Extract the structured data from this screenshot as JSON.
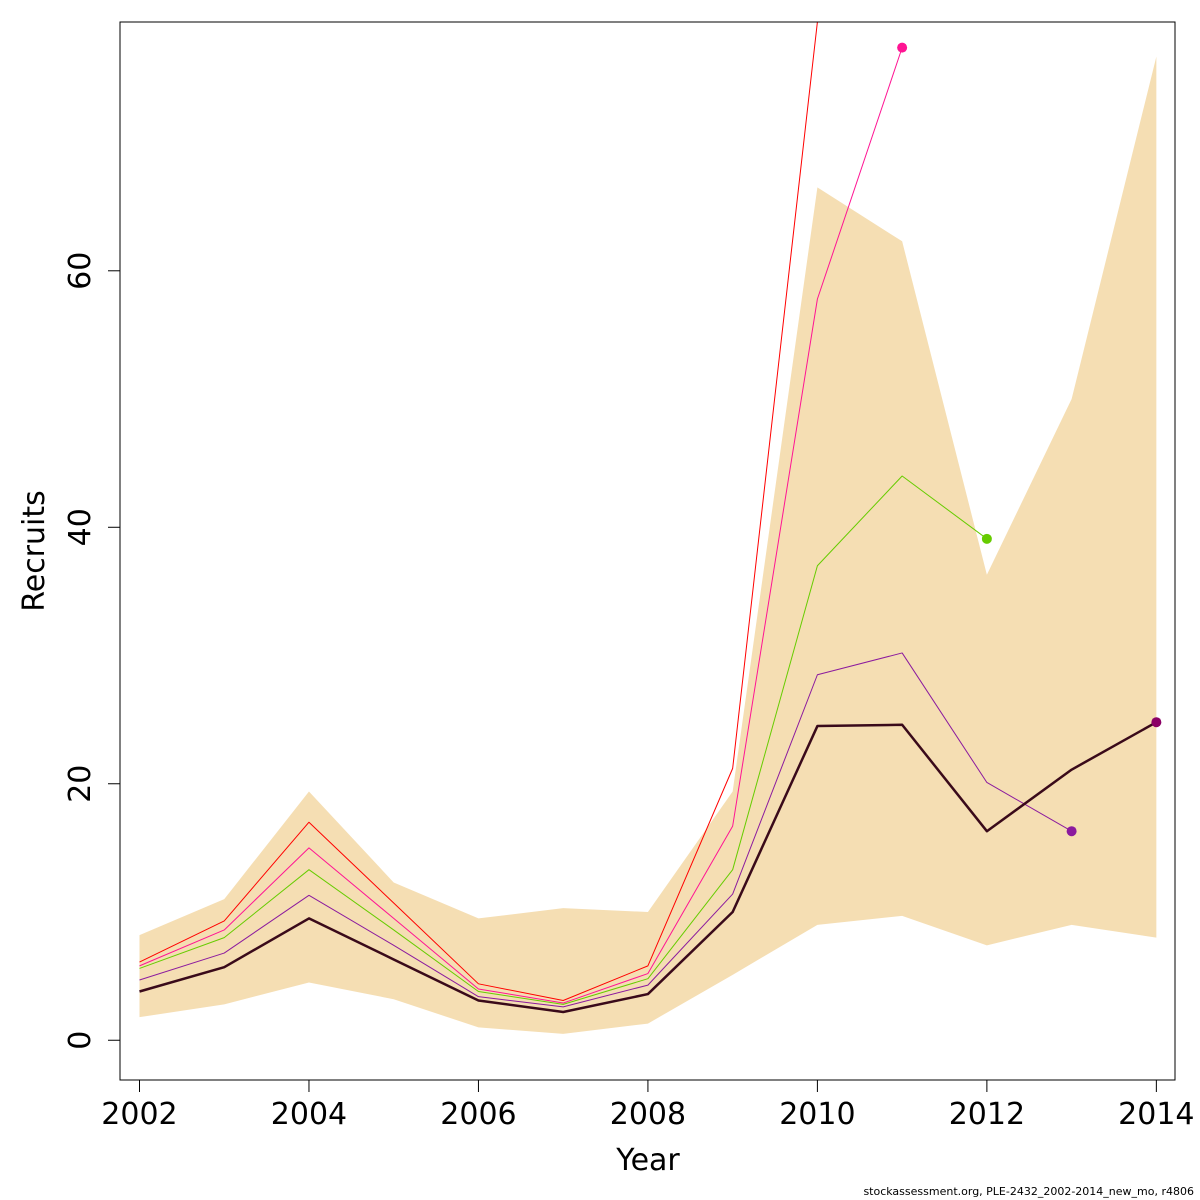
{
  "chart_data": {
    "type": "line",
    "xlabel": "Year",
    "ylabel": "Recruits",
    "xlim": [
      2001.77,
      2014.22
    ],
    "ylim": [
      -3.1,
      79.4
    ],
    "x_ticks": [
      2002,
      2004,
      2006,
      2008,
      2010,
      2012,
      2014
    ],
    "y_ticks": [
      0,
      20,
      40,
      60
    ],
    "band_color": "#f5deb3",
    "band": {
      "x": [
        2002,
        2003,
        2004,
        2005,
        2006,
        2007,
        2008,
        2009,
        2010,
        2011,
        2012,
        2013,
        2014
      ],
      "upper": [
        8.2,
        11.0,
        19.4,
        12.3,
        9.5,
        10.3,
        10.0,
        19.4,
        66.5,
        62.3,
        36.3,
        50.0,
        76.7
      ],
      "lower": [
        1.8,
        2.8,
        4.5,
        3.2,
        1.0,
        0.5,
        1.3,
        5.1,
        9.0,
        9.7,
        7.4,
        9.0,
        8.0
      ]
    },
    "series": [
      {
        "color": "#ff0000",
        "width": 1,
        "x": [
          2002,
          2003,
          2004,
          2005,
          2006,
          2007,
          2008,
          2009,
          2010
        ],
        "values": [
          6.1,
          9.3,
          17.0,
          10.7,
          4.4,
          3.1,
          5.8,
          21.2,
          79.4
        ],
        "end_point": false
      },
      {
        "color": "#ff1493",
        "width": 1,
        "x": [
          2002,
          2003,
          2004,
          2005,
          2006,
          2007,
          2008,
          2009,
          2010,
          2011
        ],
        "values": [
          5.8,
          8.6,
          15.0,
          9.5,
          4.0,
          2.9,
          5.2,
          16.7,
          57.8,
          77.4
        ],
        "end_point": true
      },
      {
        "color": "#66cc00",
        "width": 1,
        "x": [
          2002,
          2003,
          2004,
          2005,
          2006,
          2007,
          2008,
          2009,
          2010,
          2011,
          2012
        ],
        "values": [
          5.6,
          8.0,
          13.3,
          8.6,
          3.8,
          2.8,
          4.8,
          13.3,
          37.0,
          44.0,
          39.1
        ],
        "end_point": true
      },
      {
        "color": "#8b1a9e",
        "width": 1,
        "x": [
          2002,
          2003,
          2004,
          2005,
          2006,
          2007,
          2008,
          2009,
          2010,
          2011,
          2012,
          2013
        ],
        "values": [
          4.7,
          6.8,
          11.3,
          7.4,
          3.4,
          2.6,
          4.3,
          11.4,
          28.5,
          30.2,
          20.1,
          16.3
        ],
        "end_point": true
      },
      {
        "color": "#3a0a1a",
        "width": 2.5,
        "x": [
          2002,
          2003,
          2004,
          2005,
          2006,
          2007,
          2008,
          2009,
          2010,
          2011,
          2012,
          2013,
          2014
        ],
        "values": [
          3.8,
          5.7,
          9.5,
          6.3,
          3.1,
          2.2,
          3.6,
          10.0,
          24.5,
          24.6,
          16.3,
          21.1,
          24.8
        ],
        "end_point": true,
        "end_point_color": "#8b0066"
      }
    ]
  },
  "footer": "stockassessment.org, PLE-2432_2002-2014_new_mo, r4806"
}
